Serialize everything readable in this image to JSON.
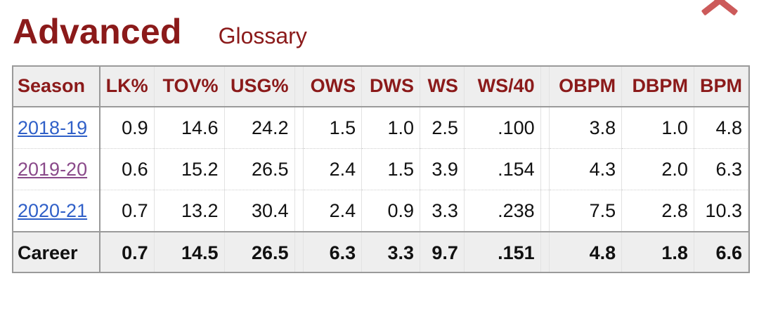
{
  "header": {
    "title": "Advanced",
    "glossary_link": "Glossary"
  },
  "table": {
    "columns": [
      "Season",
      "LK%",
      "TOV%",
      "USG%",
      "",
      "OWS",
      "DWS",
      "WS",
      "WS/40",
      "",
      "OBPM",
      "DBPM",
      "BPM"
    ],
    "rows": [
      {
        "season": "2018-19",
        "cells": [
          "0.9",
          "14.6",
          "24.2",
          "1.5",
          "1.0",
          "2.5",
          ".100",
          "3.8",
          "1.0",
          "4.8"
        ]
      },
      {
        "season": "2019-20",
        "cells": [
          "0.6",
          "15.2",
          "26.5",
          "2.4",
          "1.5",
          "3.9",
          ".154",
          "4.3",
          "2.0",
          "6.3"
        ]
      },
      {
        "season": "2020-21",
        "cells": [
          "0.7",
          "13.2",
          "30.4",
          "2.4",
          "0.9",
          "3.3",
          ".238",
          "7.5",
          "2.8",
          "10.3"
        ]
      }
    ],
    "footer": {
      "season": "Career",
      "cells": [
        "0.7",
        "14.5",
        "26.5",
        "6.3",
        "3.3",
        "9.7",
        ".151",
        "4.8",
        "1.8",
        "6.6"
      ]
    }
  },
  "colors": {
    "accent": "#8b1a1a",
    "link": "#3060c8",
    "visited_link": "#8a4a8a",
    "close_icon": "#cc5a5a"
  }
}
